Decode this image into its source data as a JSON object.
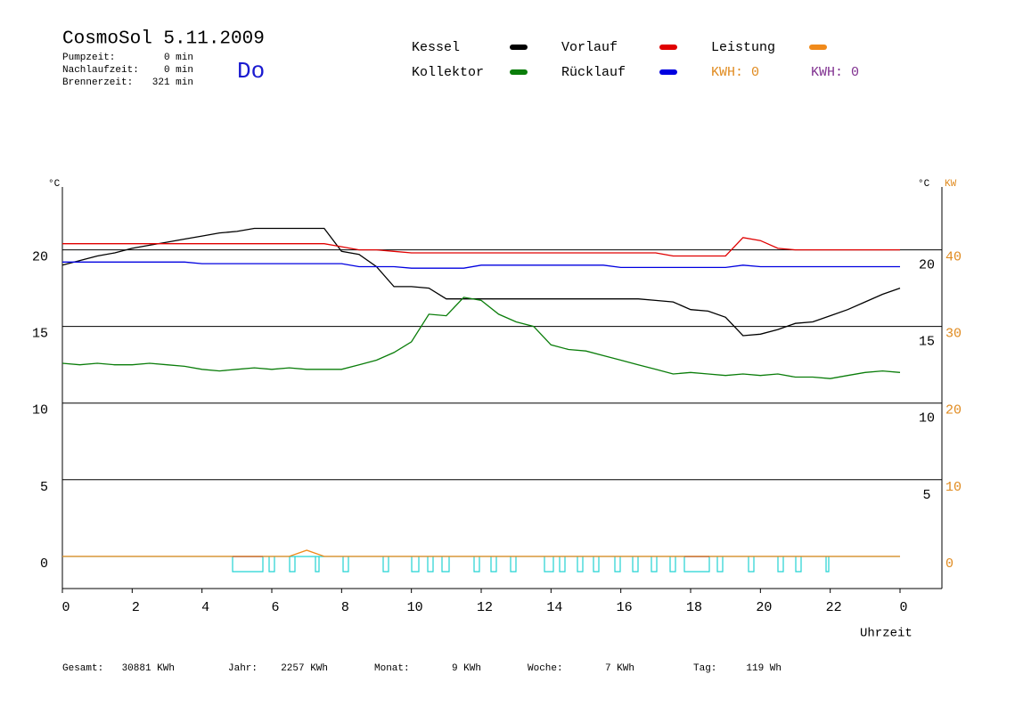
{
  "chart_data": {
    "type": "line",
    "title": "CosmoSol 5.11.2009",
    "day": "Do",
    "stats": [
      {
        "label": "Pumpzeit:",
        "value": "0 min"
      },
      {
        "label": "Nachlaufzeit:",
        "value": "0 min"
      },
      {
        "label": "Brennerzeit:",
        "value": "321 min"
      }
    ],
    "kwh_labels": [
      {
        "text": "KWH: 0",
        "color": "#e08a1e"
      },
      {
        "text": "KWH: 0",
        "color": "#7f2f8f"
      }
    ],
    "y_unit_left": "°C",
    "y_unit_right": "°C",
    "y2_unit": "KW",
    "x_label": "Uhrzeit",
    "footer": [
      {
        "label": "Gesamt:",
        "value": "30881 KWh"
      },
      {
        "label": "Jahr:",
        "value": "2257 KWh"
      },
      {
        "label": "Monat:",
        "value": "9 KWh"
      },
      {
        "label": "Woche:",
        "value": "7 KWh"
      },
      {
        "label": "Tag:",
        "value": "119 Wh"
      }
    ],
    "grid": true,
    "xlim": [
      0,
      25.2
    ],
    "xticks": [
      0,
      2,
      4,
      6,
      8,
      10,
      12,
      14,
      16,
      18,
      20,
      22,
      {
        "value": 24,
        "label": "0"
      }
    ],
    "ylim": [
      -2.1,
      24.1
    ],
    "yticks": [
      0,
      5,
      10,
      15,
      20
    ],
    "y2lim": [
      -4.2,
      48.2
    ],
    "y2ticks": [
      0,
      10,
      20,
      30,
      40
    ],
    "x": [
      0,
      0.5,
      1,
      1.5,
      2,
      2.5,
      3,
      3.5,
      4,
      4.5,
      5,
      5.5,
      6,
      6.5,
      7,
      7.5,
      8,
      8.5,
      9,
      9.5,
      10,
      10.5,
      11,
      11.5,
      12,
      12.5,
      13,
      13.5,
      14,
      14.5,
      15,
      15.5,
      16,
      16.5,
      17,
      17.5,
      18,
      18.5,
      19,
      19.5,
      20,
      20.5,
      21,
      21.5,
      22,
      22.5,
      23,
      23.5,
      24
    ],
    "series": [
      {
        "name": "Kessel",
        "color": "#000000",
        "values": [
          19.0,
          19.3,
          19.6,
          19.8,
          20.1,
          20.3,
          20.5,
          20.7,
          20.9,
          21.1,
          21.2,
          21.4,
          21.4,
          21.4,
          21.4,
          21.4,
          19.9,
          19.7,
          18.9,
          17.6,
          17.6,
          17.5,
          16.8,
          16.8,
          16.8,
          16.8,
          16.8,
          16.8,
          16.8,
          16.8,
          16.8,
          16.8,
          16.8,
          16.8,
          16.7,
          16.6,
          16.1,
          16.0,
          15.6,
          14.4,
          14.5,
          14.8,
          15.2,
          15.3,
          15.7,
          16.1,
          16.6,
          17.1,
          17.5
        ]
      },
      {
        "name": "Kollektor",
        "color": "#0a7d0a",
        "values": [
          12.6,
          12.5,
          12.6,
          12.5,
          12.5,
          12.6,
          12.5,
          12.4,
          12.2,
          12.1,
          12.2,
          12.3,
          12.2,
          12.3,
          12.2,
          12.2,
          12.2,
          12.5,
          12.8,
          13.3,
          14.0,
          15.8,
          15.7,
          16.9,
          16.7,
          15.8,
          15.3,
          15.0,
          13.8,
          13.5,
          13.4,
          13.1,
          12.8,
          12.5,
          12.2,
          11.9,
          12.0,
          11.9,
          11.8,
          11.9,
          11.8,
          11.9,
          11.7,
          11.7,
          11.6,
          11.8,
          12.0,
          12.1,
          12.0
        ]
      },
      {
        "name": "Vorlauf",
        "color": "#e00000",
        "values": [
          20.4,
          20.4,
          20.4,
          20.4,
          20.4,
          20.4,
          20.4,
          20.4,
          20.4,
          20.4,
          20.4,
          20.4,
          20.4,
          20.4,
          20.4,
          20.4,
          20.2,
          20.0,
          20.0,
          19.9,
          19.8,
          19.8,
          19.8,
          19.8,
          19.8,
          19.8,
          19.8,
          19.8,
          19.8,
          19.8,
          19.8,
          19.8,
          19.8,
          19.8,
          19.8,
          19.6,
          19.6,
          19.6,
          19.6,
          20.8,
          20.6,
          20.1,
          20.0,
          20.0,
          20.0,
          20.0,
          20.0,
          20.0,
          20.0
        ]
      },
      {
        "name": "Rücklauf",
        "color": "#0000e0",
        "values": [
          19.2,
          19.2,
          19.2,
          19.2,
          19.2,
          19.2,
          19.2,
          19.2,
          19.1,
          19.1,
          19.1,
          19.1,
          19.1,
          19.1,
          19.1,
          19.1,
          19.1,
          18.9,
          18.9,
          18.9,
          18.8,
          18.8,
          18.8,
          18.8,
          19.0,
          19.0,
          19.0,
          19.0,
          19.0,
          19.0,
          19.0,
          19.0,
          18.85,
          18.85,
          18.85,
          18.85,
          18.85,
          18.85,
          18.85,
          19.0,
          18.9,
          18.9,
          18.9,
          18.9,
          18.9,
          18.9,
          18.9,
          18.9,
          18.9
        ]
      },
      {
        "name": "Leistung",
        "color": "#f08a1a",
        "axis": "y2",
        "values": [
          0,
          0,
          0,
          0,
          0,
          0,
          0,
          0,
          0,
          0,
          0,
          0,
          0,
          0,
          0.8,
          0,
          0,
          0,
          0,
          0,
          0,
          0,
          0,
          0,
          0,
          0,
          0,
          0,
          0,
          0,
          0,
          0,
          0,
          0,
          0,
          0,
          0,
          0,
          0,
          0,
          0,
          0,
          0,
          0,
          0,
          0,
          0,
          0,
          0
        ]
      }
    ]
  }
}
